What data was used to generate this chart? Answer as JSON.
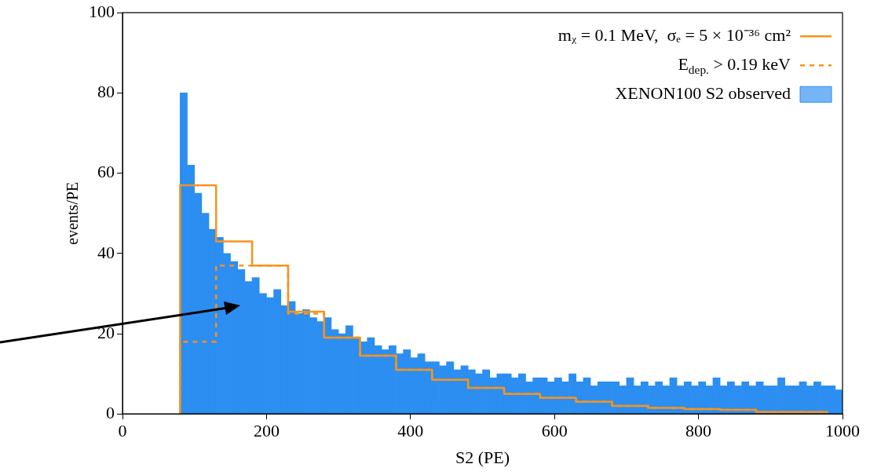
{
  "chart_data": {
    "type": "histogram",
    "xlabel": "S2 (PE)",
    "ylabel": "events/PE",
    "xlim": [
      0,
      1000
    ],
    "ylim": [
      0,
      100
    ],
    "xticks": [
      0,
      200,
      400,
      600,
      800,
      1000
    ],
    "yticks": [
      0,
      20,
      40,
      60,
      80,
      100
    ],
    "legend": "top right",
    "series": [
      {
        "name": "mᵪ = 0.1 MeV,  σₑ = 5 × 10⁻³⁶ cm²",
        "type": "step",
        "color": "#f7931e",
        "line_style": "solid",
        "x": [
          80,
          80,
          130,
          180,
          230,
          280,
          330,
          380,
          430,
          480,
          530,
          580,
          630,
          680,
          730,
          780,
          830,
          880,
          930,
          980
        ],
        "values": [
          0,
          42,
          57,
          43,
          37,
          25.5,
          19,
          14.5,
          11,
          8.5,
          6.5,
          5,
          4,
          3,
          2,
          1.5,
          1.2,
          1,
          0.5,
          0.5
        ]
      },
      {
        "name": "E$_{dep.}$ > 0.19 keV",
        "type": "step",
        "color": "#f7931e",
        "line_style": "dashed",
        "x": [
          80,
          130,
          180,
          230,
          280,
          330,
          380,
          430,
          480,
          530,
          580,
          630,
          680,
          730,
          780,
          830,
          880,
          930,
          980
        ],
        "values": [
          0,
          18,
          37,
          37,
          25,
          19,
          14.5,
          11,
          8.5,
          6.5,
          5,
          4,
          3,
          2,
          1.5,
          1.2,
          1,
          0.5,
          0.5
        ]
      },
      {
        "name": "XENON100 S2 observed",
        "type": "histogram",
        "color": "#2b8ef0",
        "bins": [
          80,
          90,
          100,
          110,
          120,
          130,
          140,
          150,
          160,
          170,
          180,
          190,
          200,
          210,
          220,
          230,
          240,
          250,
          260,
          270,
          280,
          290,
          300,
          310,
          320,
          330,
          340,
          350,
          360,
          370,
          380,
          390,
          400,
          410,
          420,
          430,
          440,
          450,
          460,
          470,
          480,
          490,
          500,
          510,
          520,
          530,
          540,
          550,
          560,
          570,
          580,
          590,
          600,
          610,
          620,
          630,
          640,
          650,
          660,
          670,
          680,
          690,
          700,
          710,
          720,
          730,
          740,
          750,
          760,
          770,
          780,
          790,
          800,
          810,
          820,
          830,
          840,
          850,
          860,
          870,
          880,
          890,
          900,
          910,
          920,
          930,
          940,
          950,
          960,
          970,
          980,
          990,
          1000
        ],
        "values": [
          80,
          62,
          55,
          50,
          46,
          44,
          40,
          38,
          36,
          33,
          34,
          30,
          29,
          31,
          27,
          28,
          25,
          26,
          24,
          23,
          24,
          21,
          20,
          22,
          19,
          18,
          19,
          17,
          16,
          17,
          15,
          16,
          14,
          15,
          13,
          13,
          12,
          13,
          11,
          12,
          11,
          10,
          11,
          9,
          10,
          10,
          9,
          10,
          8,
          9,
          9,
          8,
          9,
          8,
          10,
          8,
          9,
          7,
          8,
          8,
          8,
          7,
          9,
          7,
          8,
          7,
          8,
          7,
          9,
          7,
          8,
          7,
          8,
          7,
          9,
          7,
          8,
          7,
          8,
          7,
          8,
          7,
          7,
          9,
          7,
          7,
          8,
          7,
          8,
          7,
          7,
          6
        ]
      }
    ]
  }
}
